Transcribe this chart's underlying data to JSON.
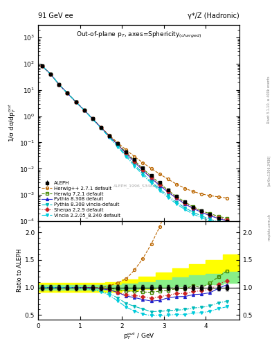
{
  "title_left": "91 GeV ee",
  "title_right": "γ*/Z (Hadronic)",
  "main_title": "Out-of-plane p$_{T}$, axes=Sphericity$_{(charged)}$",
  "watermark": "ALEPH_1996_S3486095",
  "rivet_label": "Rivet 3.1.10, ≥ 400k events",
  "arxiv_label": "[arXiv:1306.3436]",
  "mcplots_label": "mcplots.cern.ch",
  "ylabel_main": "1/σ dσ/dp$_{T}^{out}$",
  "ylabel_ratio": "Ratio to ALEPH",
  "xlabel": "p$_{T}^{out}$ / GeV",
  "xlim": [
    0,
    4.8
  ],
  "ylim_main": [
    0.0001,
    3000.0
  ],
  "ylim_ratio": [
    0.42,
    2.2
  ],
  "aleph_x": [
    0.1,
    0.3,
    0.5,
    0.7,
    0.9,
    1.1,
    1.3,
    1.5,
    1.7,
    1.9,
    2.1,
    2.3,
    2.5,
    2.7,
    2.9,
    3.1,
    3.3,
    3.5,
    3.7,
    3.9,
    4.1,
    4.3,
    4.5
  ],
  "aleph_y": [
    80,
    40,
    16,
    7.5,
    3.5,
    1.7,
    0.8,
    0.38,
    0.18,
    0.09,
    0.045,
    0.022,
    0.011,
    0.0057,
    0.003,
    0.0016,
    0.0009,
    0.00055,
    0.00035,
    0.00025,
    0.00018,
    0.00013,
    0.0001
  ],
  "aleph_yerr": [
    4,
    2,
    0.8,
    0.35,
    0.17,
    0.08,
    0.04,
    0.019,
    0.009,
    0.0045,
    0.0022,
    0.0011,
    0.00055,
    0.00028,
    0.00015,
    8e-05,
    4.5e-05,
    2.8e-05,
    1.8e-05,
    1.3e-05,
    9e-06,
    6.5e-06,
    5e-06
  ],
  "herwig271_y": [
    80,
    40,
    16,
    7.5,
    3.5,
    1.7,
    0.8,
    0.38,
    0.185,
    0.098,
    0.052,
    0.029,
    0.0168,
    0.0102,
    0.0063,
    0.004,
    0.0026,
    0.0018,
    0.00135,
    0.0011,
    0.00095,
    0.00085,
    0.00077
  ],
  "herwig721_y": [
    80,
    40,
    16,
    7.5,
    3.5,
    1.7,
    0.8,
    0.376,
    0.177,
    0.087,
    0.042,
    0.0205,
    0.0101,
    0.0052,
    0.0028,
    0.00152,
    0.00088,
    0.00054,
    0.00036,
    0.00025,
    0.000195,
    0.000155,
    0.00013
  ],
  "pythia8308_y": [
    80,
    40,
    16,
    7.5,
    3.5,
    1.7,
    0.8,
    0.372,
    0.172,
    0.082,
    0.038,
    0.018,
    0.0086,
    0.0043,
    0.0023,
    0.0013,
    0.00075,
    0.00046,
    0.000305,
    0.00022,
    0.000163,
    0.000128,
    0.000105
  ],
  "pythia8vincia_y": [
    80,
    40,
    16,
    7.5,
    3.5,
    1.68,
    0.77,
    0.353,
    0.16,
    0.073,
    0.032,
    0.0145,
    0.0067,
    0.0032,
    0.0017,
    0.00093,
    0.00053,
    0.00033,
    0.00022,
    0.00016,
    0.00012,
    9.4e-05,
    7.5e-05
  ],
  "sherpa229_y": [
    80,
    40,
    16,
    7.5,
    3.5,
    1.7,
    0.8,
    0.375,
    0.174,
    0.082,
    0.039,
    0.0188,
    0.0092,
    0.0046,
    0.0025,
    0.00138,
    0.0008,
    0.00049,
    0.000325,
    0.000235,
    0.000175,
    0.000138,
    0.000112
  ],
  "vincia_y": [
    80,
    40,
    16,
    7.5,
    3.5,
    1.68,
    0.77,
    0.35,
    0.155,
    0.068,
    0.029,
    0.0126,
    0.0057,
    0.0028,
    0.00148,
    0.0008,
    0.00046,
    0.00028,
    0.000188,
    0.000136,
    0.000102,
    8e-05,
    6.5e-05
  ],
  "band_yellow_x": [
    0.0,
    0.4,
    0.8,
    1.2,
    1.6,
    2.0,
    2.4,
    2.8,
    3.2,
    3.6,
    4.0,
    4.4,
    4.8
  ],
  "band_yellow_lo": [
    0.92,
    0.92,
    0.92,
    0.92,
    0.92,
    0.95,
    0.97,
    1.0,
    1.03,
    1.07,
    1.1,
    1.15,
    1.15
  ],
  "band_yellow_hi": [
    1.08,
    1.08,
    1.08,
    1.08,
    1.1,
    1.15,
    1.2,
    1.27,
    1.35,
    1.42,
    1.5,
    1.6,
    1.65
  ],
  "band_green_x": [
    0.0,
    0.4,
    0.8,
    1.2,
    1.6,
    2.0,
    2.4,
    2.8,
    3.2,
    3.6,
    4.0,
    4.4,
    4.8
  ],
  "band_green_lo": [
    0.96,
    0.96,
    0.96,
    0.96,
    0.96,
    0.97,
    0.98,
    1.0,
    1.02,
    1.04,
    1.06,
    1.08,
    1.08
  ],
  "band_green_hi": [
    1.04,
    1.04,
    1.04,
    1.04,
    1.05,
    1.07,
    1.1,
    1.14,
    1.18,
    1.22,
    1.25,
    1.28,
    1.3
  ],
  "colors": {
    "aleph": "#000000",
    "herwig271": "#bb6600",
    "herwig721": "#448800",
    "pythia8308": "#2222cc",
    "pythia8vincia": "#00bbbb",
    "sherpa229": "#cc2222",
    "vincia": "#00ccdd"
  }
}
